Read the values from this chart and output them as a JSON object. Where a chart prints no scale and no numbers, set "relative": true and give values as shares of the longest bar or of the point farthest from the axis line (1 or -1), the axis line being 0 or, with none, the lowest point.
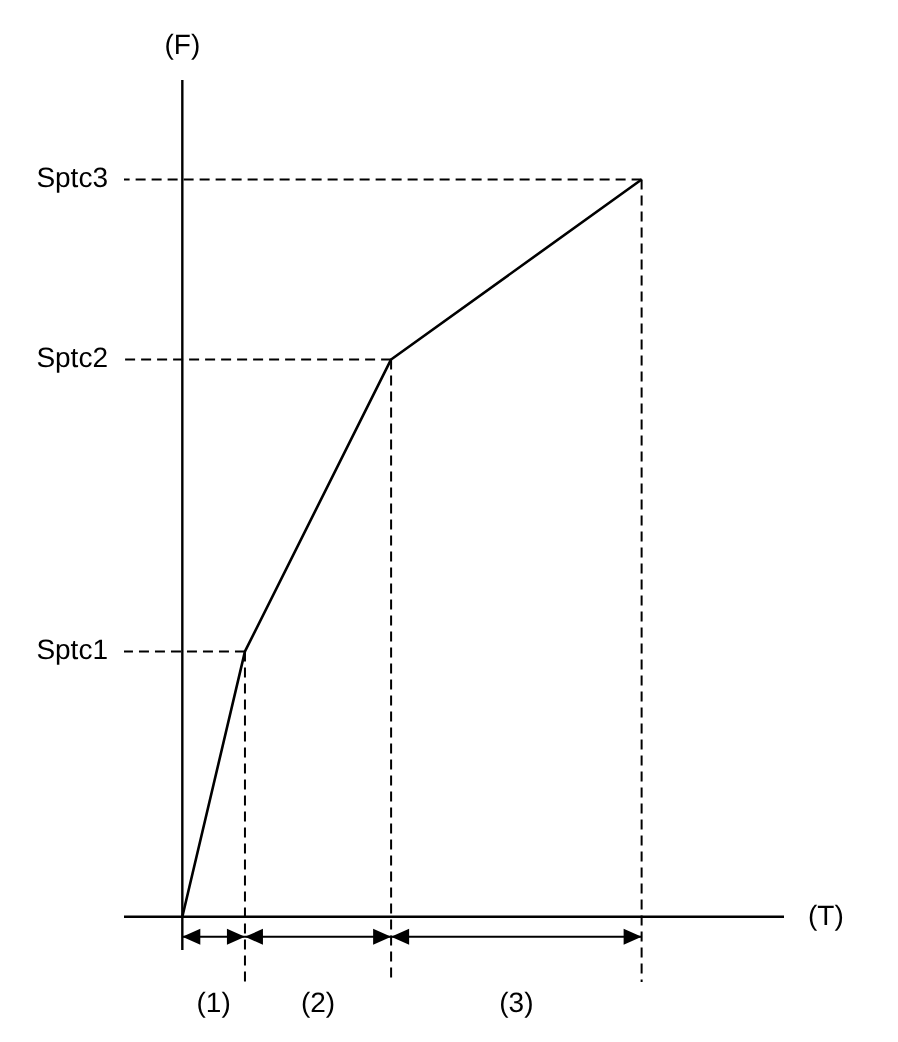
{
  "chart_data": {
    "type": "line",
    "ylabel": "(F)",
    "categories": [
      null,
      null,
      null,
      null,
      null,
      null,
      null,
      null,
      null,
      null,
      null,
      null,
      null,
      null,
      null,
      null,
      null,
      null,
      null,
      null,
      null,
      null,
      null
    ],
    "series": [
      {
        "color": "#000000",
        "values": [
          0,
          null,
          null,
          0.36,
          null,
          null,
          null,
          null,
          null,
          null,
          0.756,
          null,
          null,
          null,
          null,
          null,
          null,
          null,
          null,
          null,
          null,
          null,
          1
        ]
      }
    ],
    "relative": true,
    "annotations": [
      "Sptc1",
      "Sptc2",
      "Sptc3",
      "(1)",
      "(2)",
      "(3)",
      "(T)"
    ],
    "grid": false,
    "legend": false,
    "marker": "none",
    "line_style": "solid"
  }
}
